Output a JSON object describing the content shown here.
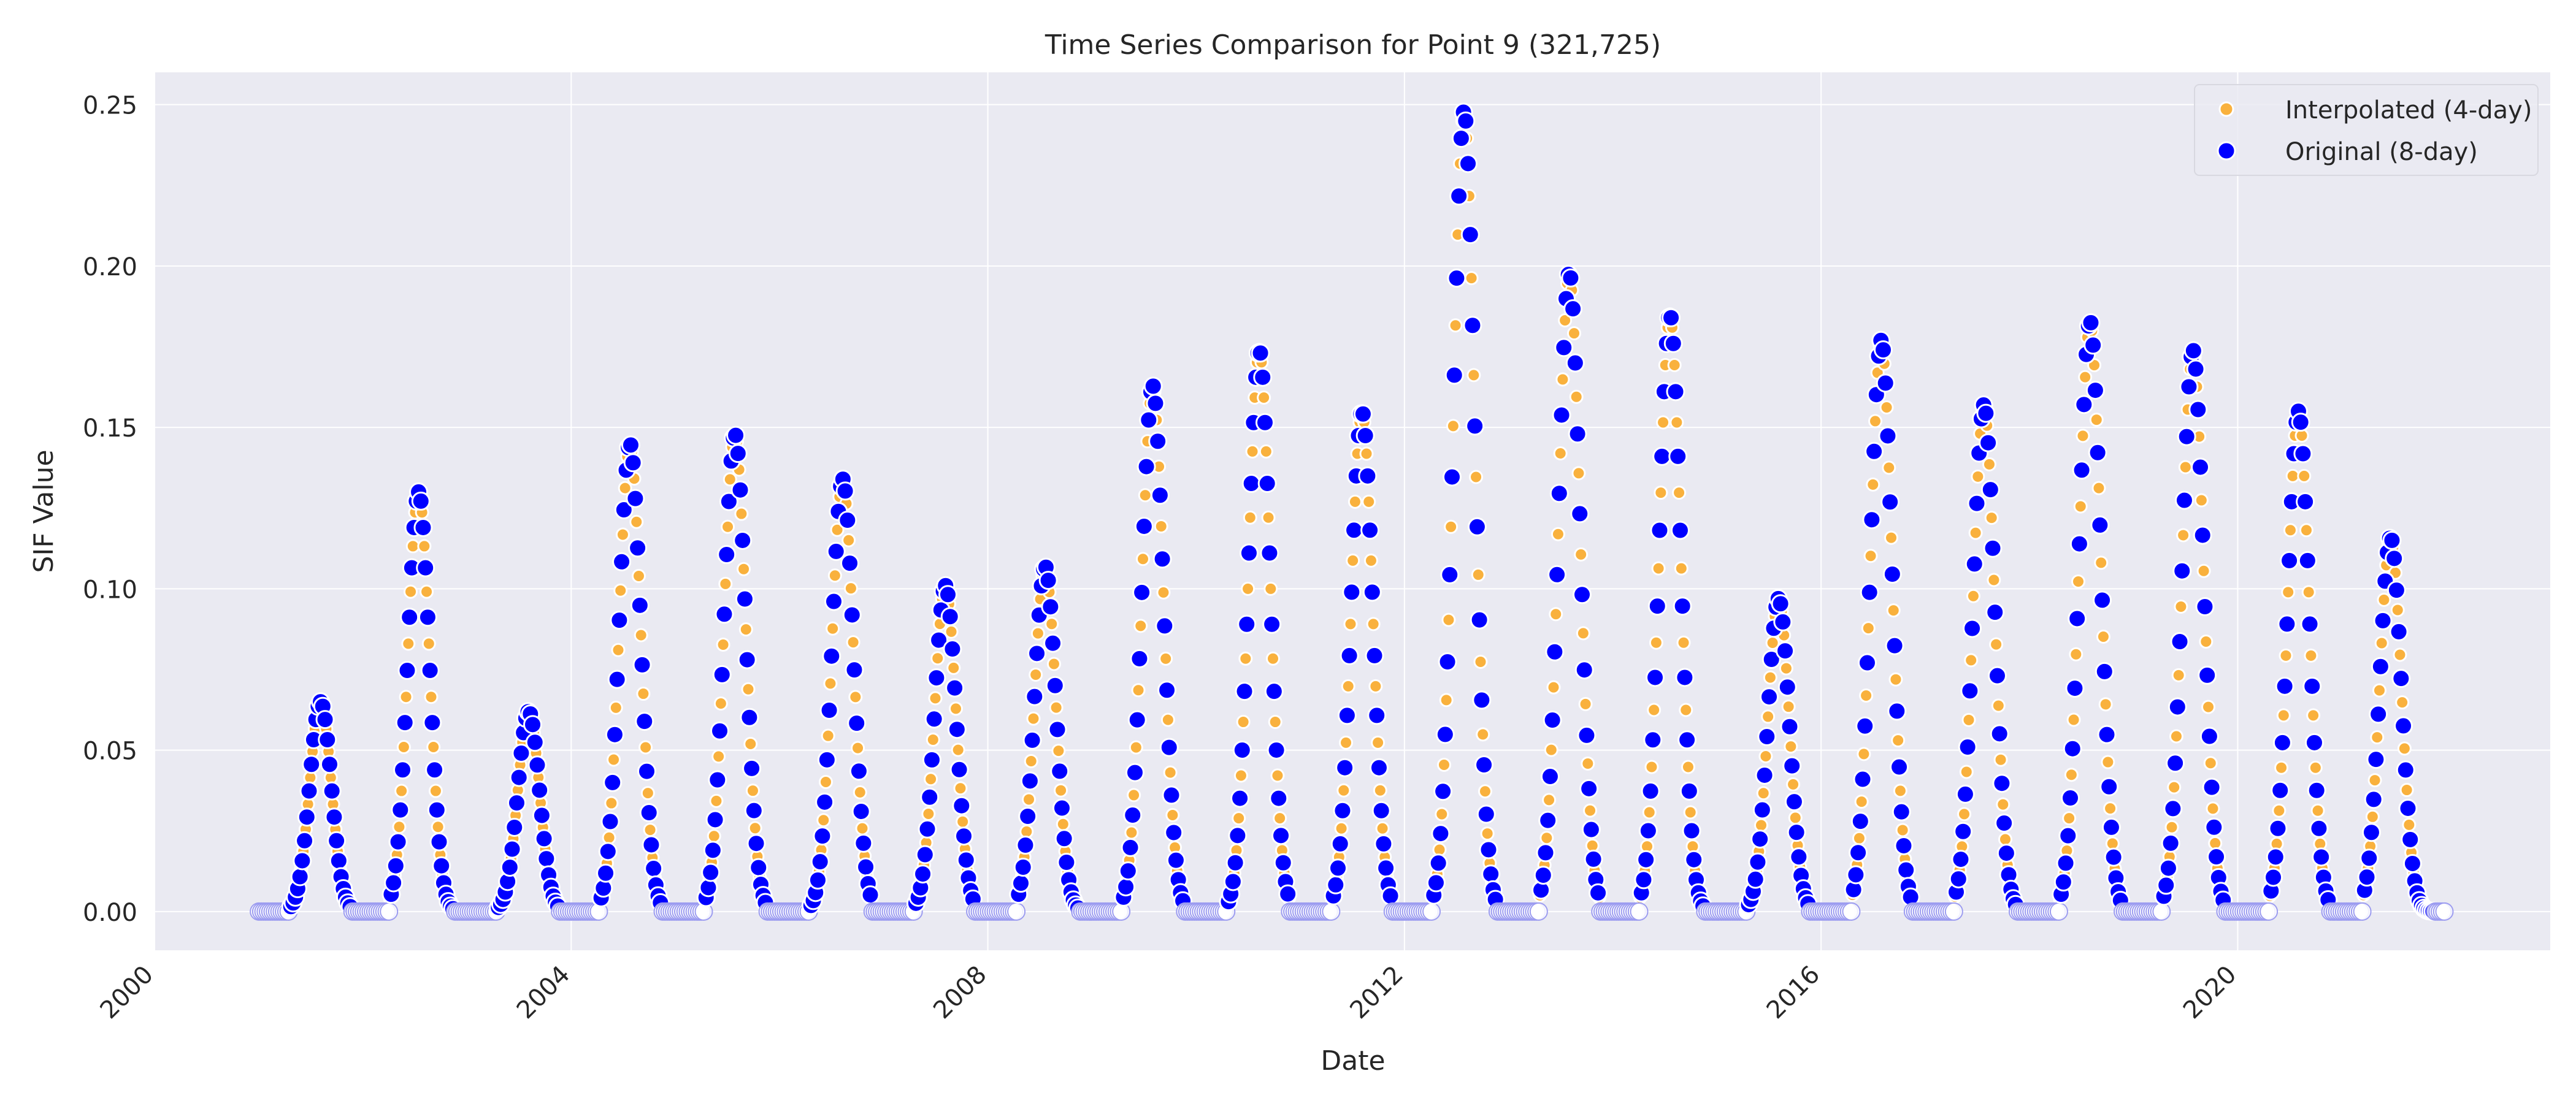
{
  "chart_data": {
    "type": "scatter",
    "title": "Time Series Comparison for Point 9 (321,725)",
    "xlabel": "Date",
    "ylabel": "SIF Value",
    "xlim": [
      "2000-01-01",
      "2023-01-01"
    ],
    "ylim": [
      -0.012,
      0.26
    ],
    "x_ticks": [
      "2000",
      "2004",
      "2008",
      "2012",
      "2016",
      "2020"
    ],
    "y_ticks": [
      "0.00",
      "0.05",
      "0.10",
      "0.15",
      "0.20",
      "0.25"
    ],
    "grid": true,
    "background": "#eaeaf2",
    "legend_position": "top-right",
    "series": [
      {
        "name": "Interpolated (4-day)",
        "color": "#f9b13d",
        "note_cadence": "4-day",
        "x_start": "2001-01-01",
        "years": [
          2001,
          2002,
          2003,
          2004,
          2005,
          2006,
          2007,
          2008,
          2009,
          2010,
          2011,
          2012,
          2013,
          2014,
          2015,
          2016,
          2017,
          2018,
          2019,
          2020,
          2021
        ],
        "annual_peak": [
          0.065,
          0.13,
          0.062,
          0.145,
          0.148,
          0.134,
          0.101,
          0.107,
          0.163,
          0.174,
          0.155,
          0.248,
          0.198,
          0.185,
          0.097,
          0.177,
          0.157,
          0.183,
          0.174,
          0.155,
          0.116
        ],
        "peak_date": [
          "2001-08-05",
          "2002-07-15",
          "2003-08-05",
          "2004-07-25",
          "2005-07-28",
          "2006-08-10",
          "2007-08-05",
          "2008-07-20",
          "2009-08-01",
          "2010-08-10",
          "2011-08-05",
          "2012-07-28",
          "2013-08-01",
          "2014-07-20",
          "2015-08-05",
          "2016-07-30",
          "2017-07-25",
          "2018-08-01",
          "2019-07-28",
          "2020-08-01",
          "2021-06-20"
        ]
      },
      {
        "name": "Original (8-day)",
        "color": "#0000ff",
        "note_cadence": "8-day",
        "x_start": "2001-01-01",
        "years": [
          2001,
          2002,
          2003,
          2004,
          2005,
          2006,
          2007,
          2008,
          2009,
          2010,
          2011,
          2012,
          2013,
          2014,
          2015,
          2016,
          2017,
          2018,
          2019,
          2020,
          2021
        ],
        "annual_peak": [
          0.065,
          0.13,
          0.062,
          0.145,
          0.148,
          0.134,
          0.101,
          0.107,
          0.163,
          0.174,
          0.155,
          0.248,
          0.198,
          0.185,
          0.097,
          0.177,
          0.157,
          0.183,
          0.174,
          0.155,
          0.116
        ],
        "peak_date": [
          "2001-08-05",
          "2002-07-15",
          "2003-08-05",
          "2004-07-25",
          "2005-07-28",
          "2006-08-10",
          "2007-08-05",
          "2008-07-20",
          "2009-08-01",
          "2010-08-10",
          "2011-08-05",
          "2012-07-28",
          "2013-08-01",
          "2014-07-20",
          "2015-08-05",
          "2016-07-30",
          "2017-07-25",
          "2018-08-01",
          "2019-07-28",
          "2020-08-01",
          "2021-06-20"
        ]
      }
    ],
    "x_end": "2021-12-31",
    "legend": [
      {
        "label": "Interpolated (4-day)",
        "color": "#f9b13d"
      },
      {
        "label": "Original (8-day)",
        "color": "#0000ff"
      }
    ]
  }
}
